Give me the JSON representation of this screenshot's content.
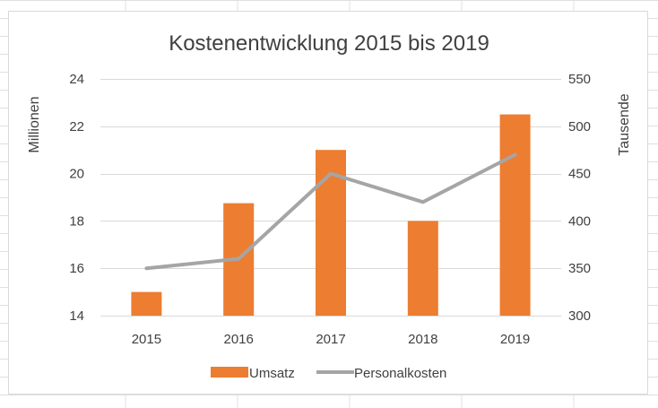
{
  "colors": {
    "bar": "#ED7D31",
    "line": "#A5A5A5",
    "gridline": "#D9D9D9",
    "text": "#404040",
    "sheet_grid": "#E0E0E0"
  },
  "chart_data": {
    "type": "bar",
    "title": "Kostenentwicklung 2015 bis 2019",
    "categories": [
      "2015",
      "2016",
      "2017",
      "2018",
      "2019"
    ],
    "series": [
      {
        "name": "Umsatz",
        "type": "bar",
        "axis": "primary",
        "values": [
          15.0,
          18.75,
          21.0,
          18.0,
          22.5
        ]
      },
      {
        "name": "Personalkosten",
        "type": "line",
        "axis": "secondary",
        "values": [
          350,
          360,
          450,
          420,
          470
        ]
      }
    ],
    "y_left": {
      "label": "Millionen",
      "ylim": [
        14,
        24
      ],
      "ticks": [
        "14",
        "16",
        "18",
        "20",
        "22",
        "24"
      ]
    },
    "y_right": {
      "label": "Tausende",
      "ylim": [
        300,
        550
      ],
      "ticks": [
        "300",
        "350",
        "400",
        "450",
        "500",
        "550"
      ]
    },
    "grid": true,
    "legend_position": "bottom"
  }
}
